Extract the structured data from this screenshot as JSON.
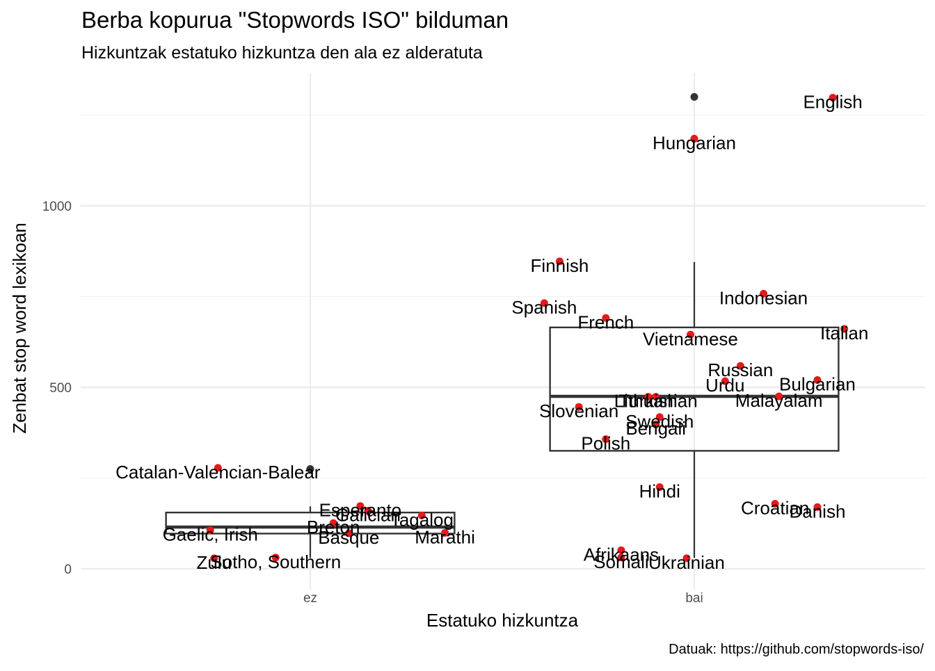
{
  "chart_data": {
    "type": "boxplot+jitter",
    "title": "Berba kopurua \"Stopwords ISO\" bilduman",
    "subtitle": "Hizkuntzak estatuko hizkuntza den ala ez alderatuta",
    "xlabel": "Estatuko hizkuntza",
    "ylabel": "Zenbat stop word lexikoan",
    "caption": "Datuak: https://github.com/stopwords-iso/",
    "categories": [
      "ez",
      "bai"
    ],
    "yticks": [
      0,
      500,
      1000
    ],
    "ylim": [
      -50,
      1360
    ],
    "grid": true,
    "point_color": "#e41a1c",
    "box_color": "#333333",
    "boxes": [
      {
        "category": "ez",
        "q1": 97,
        "median": 115,
        "q3": 155,
        "whisker_low": 30,
        "whisker_high": 172,
        "outliers": [
          275
        ]
      },
      {
        "category": "bai",
        "q1": 325,
        "median": 475,
        "q3": 665,
        "whisker_low": 30,
        "whisker_high": 845,
        "outliers": [
          1300
        ]
      }
    ],
    "points": [
      {
        "label": "Catalan-Valencian-Balear",
        "category": "ez",
        "x_offset": -0.24,
        "value": 278
      },
      {
        "label": "Esperanto",
        "category": "ez",
        "x_offset": 0.13,
        "value": 173
      },
      {
        "label": "Galician",
        "category": "ez",
        "x_offset": 0.15,
        "value": 160
      },
      {
        "label": "Tagalog",
        "category": "ez",
        "x_offset": 0.29,
        "value": 147
      },
      {
        "label": "Breton",
        "category": "ez",
        "x_offset": 0.06,
        "value": 126
      },
      {
        "label": "Gaelic, Irish",
        "category": "ez",
        "x_offset": -0.26,
        "value": 106
      },
      {
        "label": "Basque",
        "category": "ez",
        "x_offset": 0.1,
        "value": 98
      },
      {
        "label": "Marathi",
        "category": "ez",
        "x_offset": 0.35,
        "value": 99
      },
      {
        "label": "Zulu",
        "category": "ez",
        "x_offset": -0.25,
        "value": 29
      },
      {
        "label": "Sotho, Southern",
        "category": "ez",
        "x_offset": -0.09,
        "value": 31
      },
      {
        "label": "English",
        "category": "bai",
        "x_offset": 0.36,
        "value": 1298
      },
      {
        "label": "Hungarian",
        "category": "bai",
        "x_offset": 0.0,
        "value": 1185
      },
      {
        "label": "Finnish",
        "category": "bai",
        "x_offset": -0.35,
        "value": 847
      },
      {
        "label": "Indonesian",
        "category": "bai",
        "x_offset": 0.18,
        "value": 758
      },
      {
        "label": "Spanish",
        "category": "bai",
        "x_offset": -0.39,
        "value": 732
      },
      {
        "label": "French",
        "category": "bai",
        "x_offset": -0.23,
        "value": 691
      },
      {
        "label": "Italian",
        "category": "bai",
        "x_offset": 0.39,
        "value": 661
      },
      {
        "label": "Vietnamese",
        "category": "bai",
        "x_offset": -0.01,
        "value": 645
      },
      {
        "label": "Russian",
        "category": "bai",
        "x_offset": 0.12,
        "value": 559
      },
      {
        "label": "Urdu",
        "category": "bai",
        "x_offset": 0.08,
        "value": 517
      },
      {
        "label": "Bulgarian",
        "category": "bai",
        "x_offset": 0.32,
        "value": 520
      },
      {
        "label": "Malayalam",
        "category": "bai",
        "x_offset": 0.22,
        "value": 475
      },
      {
        "label": "Turkish",
        "category": "bai",
        "x_offset": -0.12,
        "value": 474
      },
      {
        "label": "Lithuanian",
        "category": "bai",
        "x_offset": -0.1,
        "value": 474
      },
      {
        "label": "Slovenian",
        "category": "bai",
        "x_offset": -0.3,
        "value": 446
      },
      {
        "label": "Swedish",
        "category": "bai",
        "x_offset": -0.09,
        "value": 418
      },
      {
        "label": "Bengali",
        "category": "bai",
        "x_offset": -0.1,
        "value": 398
      },
      {
        "label": "Polish",
        "category": "bai",
        "x_offset": -0.23,
        "value": 357
      },
      {
        "label": "Hindi",
        "category": "bai",
        "x_offset": -0.09,
        "value": 225
      },
      {
        "label": "Croatian",
        "category": "bai",
        "x_offset": 0.21,
        "value": 179
      },
      {
        "label": "Danish",
        "category": "bai",
        "x_offset": 0.32,
        "value": 170
      },
      {
        "label": "Afrikaans",
        "category": "bai",
        "x_offset": -0.19,
        "value": 51
      },
      {
        "label": "Somali",
        "category": "bai",
        "x_offset": -0.19,
        "value": 31
      },
      {
        "label": "Ukrainian",
        "category": "bai",
        "x_offset": -0.02,
        "value": 29
      }
    ]
  }
}
